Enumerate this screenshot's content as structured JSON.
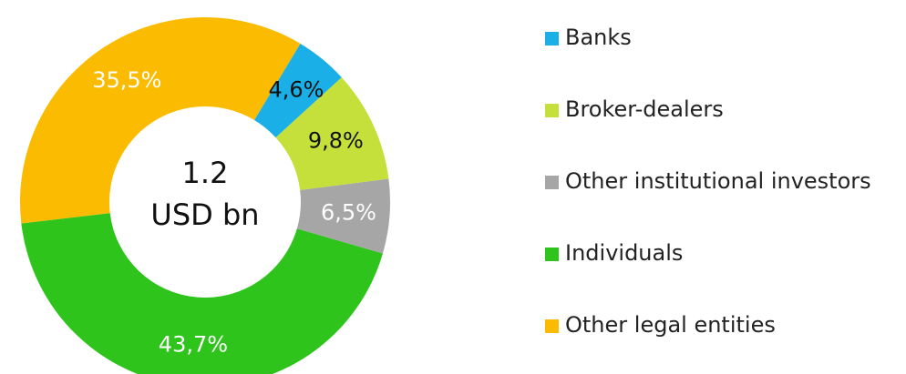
{
  "chart_data": {
    "type": "donut",
    "center_text": [
      "1.2",
      "USD bn"
    ],
    "categories": [
      "Banks",
      "Broker-dealers",
      "Other institutional investors",
      "Individuals",
      "Other legal entities"
    ],
    "values": [
      4.6,
      9.8,
      6.5,
      43.7,
      35.5
    ],
    "value_labels": [
      "4,6%",
      "9,8%",
      "6,5%",
      "43,7%",
      "35,5%"
    ],
    "colors": [
      "#1aafe6",
      "#c5e03a",
      "#a6a6a6",
      "#2ec41c",
      "#fbbb00"
    ],
    "label_colors": [
      "#111111",
      "#111111",
      "#ffffff",
      "#ffffff",
      "#ffffff"
    ],
    "legend": "right"
  }
}
